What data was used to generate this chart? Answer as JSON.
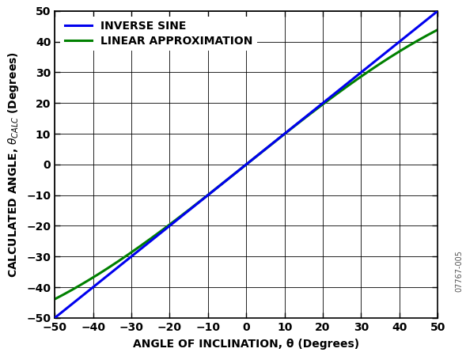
{
  "xlim": [
    -50,
    50
  ],
  "ylim": [
    -50,
    50
  ],
  "xticks": [
    -50,
    -40,
    -30,
    -20,
    -10,
    0,
    10,
    20,
    30,
    40,
    50
  ],
  "yticks": [
    -50,
    -40,
    -30,
    -20,
    -10,
    0,
    10,
    20,
    30,
    40,
    50
  ],
  "xlabel": "ANGLE OF INCLINATION, θ (Degrees)",
  "blue_label": "INVERSE SINE",
  "green_label": "LINEAR APPROXIMATION",
  "blue_color": "#0000EE",
  "green_color": "#008000",
  "bg_color": "#FFFFFF",
  "grid_color": "#000000",
  "linewidth": 2.2,
  "legend_fontsize": 10,
  "axis_label_fontsize": 10,
  "tick_fontsize": 10,
  "watermark": "07767-005"
}
